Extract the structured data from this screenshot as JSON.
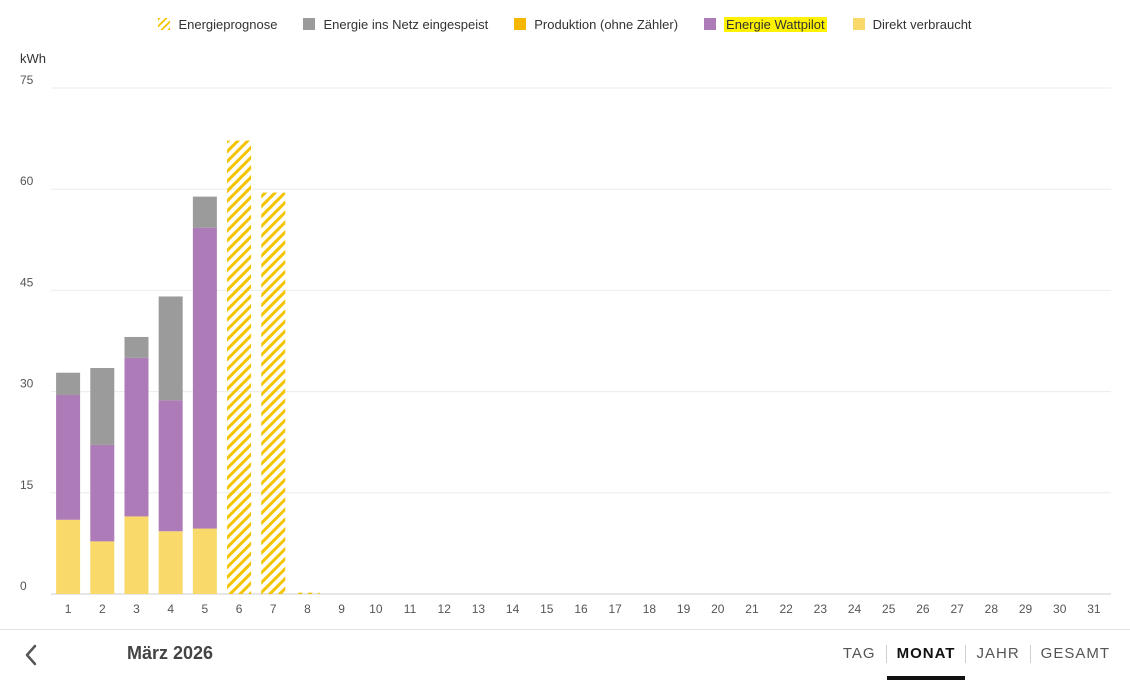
{
  "legend": [
    {
      "label": "Energieprognose",
      "swatch": "hatch",
      "color": "#f5c400",
      "highlight": false
    },
    {
      "label": "Energie ins Netz eingespeist",
      "swatch": "solid",
      "color": "#9b9b9b",
      "highlight": false
    },
    {
      "label": "Produktion (ohne Zähler)",
      "swatch": "solid",
      "color": "#f5b800",
      "highlight": false
    },
    {
      "label": "Energie Wattpilot",
      "swatch": "solid",
      "color": "#ad7bb8",
      "highlight": true
    },
    {
      "label": "Direkt verbraucht",
      "swatch": "solid",
      "color": "#f9d96a",
      "highlight": false
    }
  ],
  "chart_data": {
    "type": "bar",
    "stacked": true,
    "ylabel": "kWh",
    "ylim": [
      0,
      75
    ],
    "yticks": [
      0,
      15,
      30,
      45,
      60,
      75
    ],
    "grid": true,
    "legend_position": "top-center",
    "categories": [
      "1",
      "2",
      "3",
      "4",
      "5",
      "6",
      "7",
      "8",
      "9",
      "10",
      "11",
      "12",
      "13",
      "14",
      "15",
      "16",
      "17",
      "18",
      "19",
      "20",
      "21",
      "22",
      "23",
      "24",
      "25",
      "26",
      "27",
      "28",
      "29",
      "30",
      "31"
    ],
    "series": [
      {
        "name": "Direkt verbraucht",
        "color": "#f9d96a",
        "pattern": "solid",
        "values": [
          11,
          7.8,
          11.5,
          9.3,
          9.7,
          null,
          null,
          null,
          null,
          null,
          null,
          null,
          null,
          null,
          null,
          null,
          null,
          null,
          null,
          null,
          null,
          null,
          null,
          null,
          null,
          null,
          null,
          null,
          null,
          null,
          null
        ]
      },
      {
        "name": "Energie Wattpilot",
        "color": "#ad7bb8",
        "pattern": "solid",
        "values": [
          18.5,
          14.3,
          23.5,
          19.4,
          44.6,
          null,
          null,
          null,
          null,
          null,
          null,
          null,
          null,
          null,
          null,
          null,
          null,
          null,
          null,
          null,
          null,
          null,
          null,
          null,
          null,
          null,
          null,
          null,
          null,
          null,
          null
        ]
      },
      {
        "name": "Energie ins Netz eingespeist",
        "color": "#9b9b9b",
        "pattern": "solid",
        "values": [
          3.3,
          11.4,
          3.1,
          15.4,
          4.6,
          null,
          null,
          null,
          null,
          null,
          null,
          null,
          null,
          null,
          null,
          null,
          null,
          null,
          null,
          null,
          null,
          null,
          null,
          null,
          null,
          null,
          null,
          null,
          null,
          null,
          null
        ]
      },
      {
        "name": "Energieprognose",
        "color": "#f5c400",
        "pattern": "hatch",
        "values": [
          null,
          null,
          null,
          null,
          null,
          67.2,
          59.5,
          0.2,
          null,
          null,
          null,
          null,
          null,
          null,
          null,
          null,
          null,
          null,
          null,
          null,
          null,
          null,
          null,
          null,
          null,
          null,
          null,
          null,
          null,
          null,
          null
        ]
      }
    ]
  },
  "footer": {
    "period": "März 2026",
    "tabs": [
      {
        "label": "TAG",
        "active": false
      },
      {
        "label": "MONAT",
        "active": true
      },
      {
        "label": "JAHR",
        "active": false
      },
      {
        "label": "GESAMT",
        "active": false
      }
    ]
  }
}
